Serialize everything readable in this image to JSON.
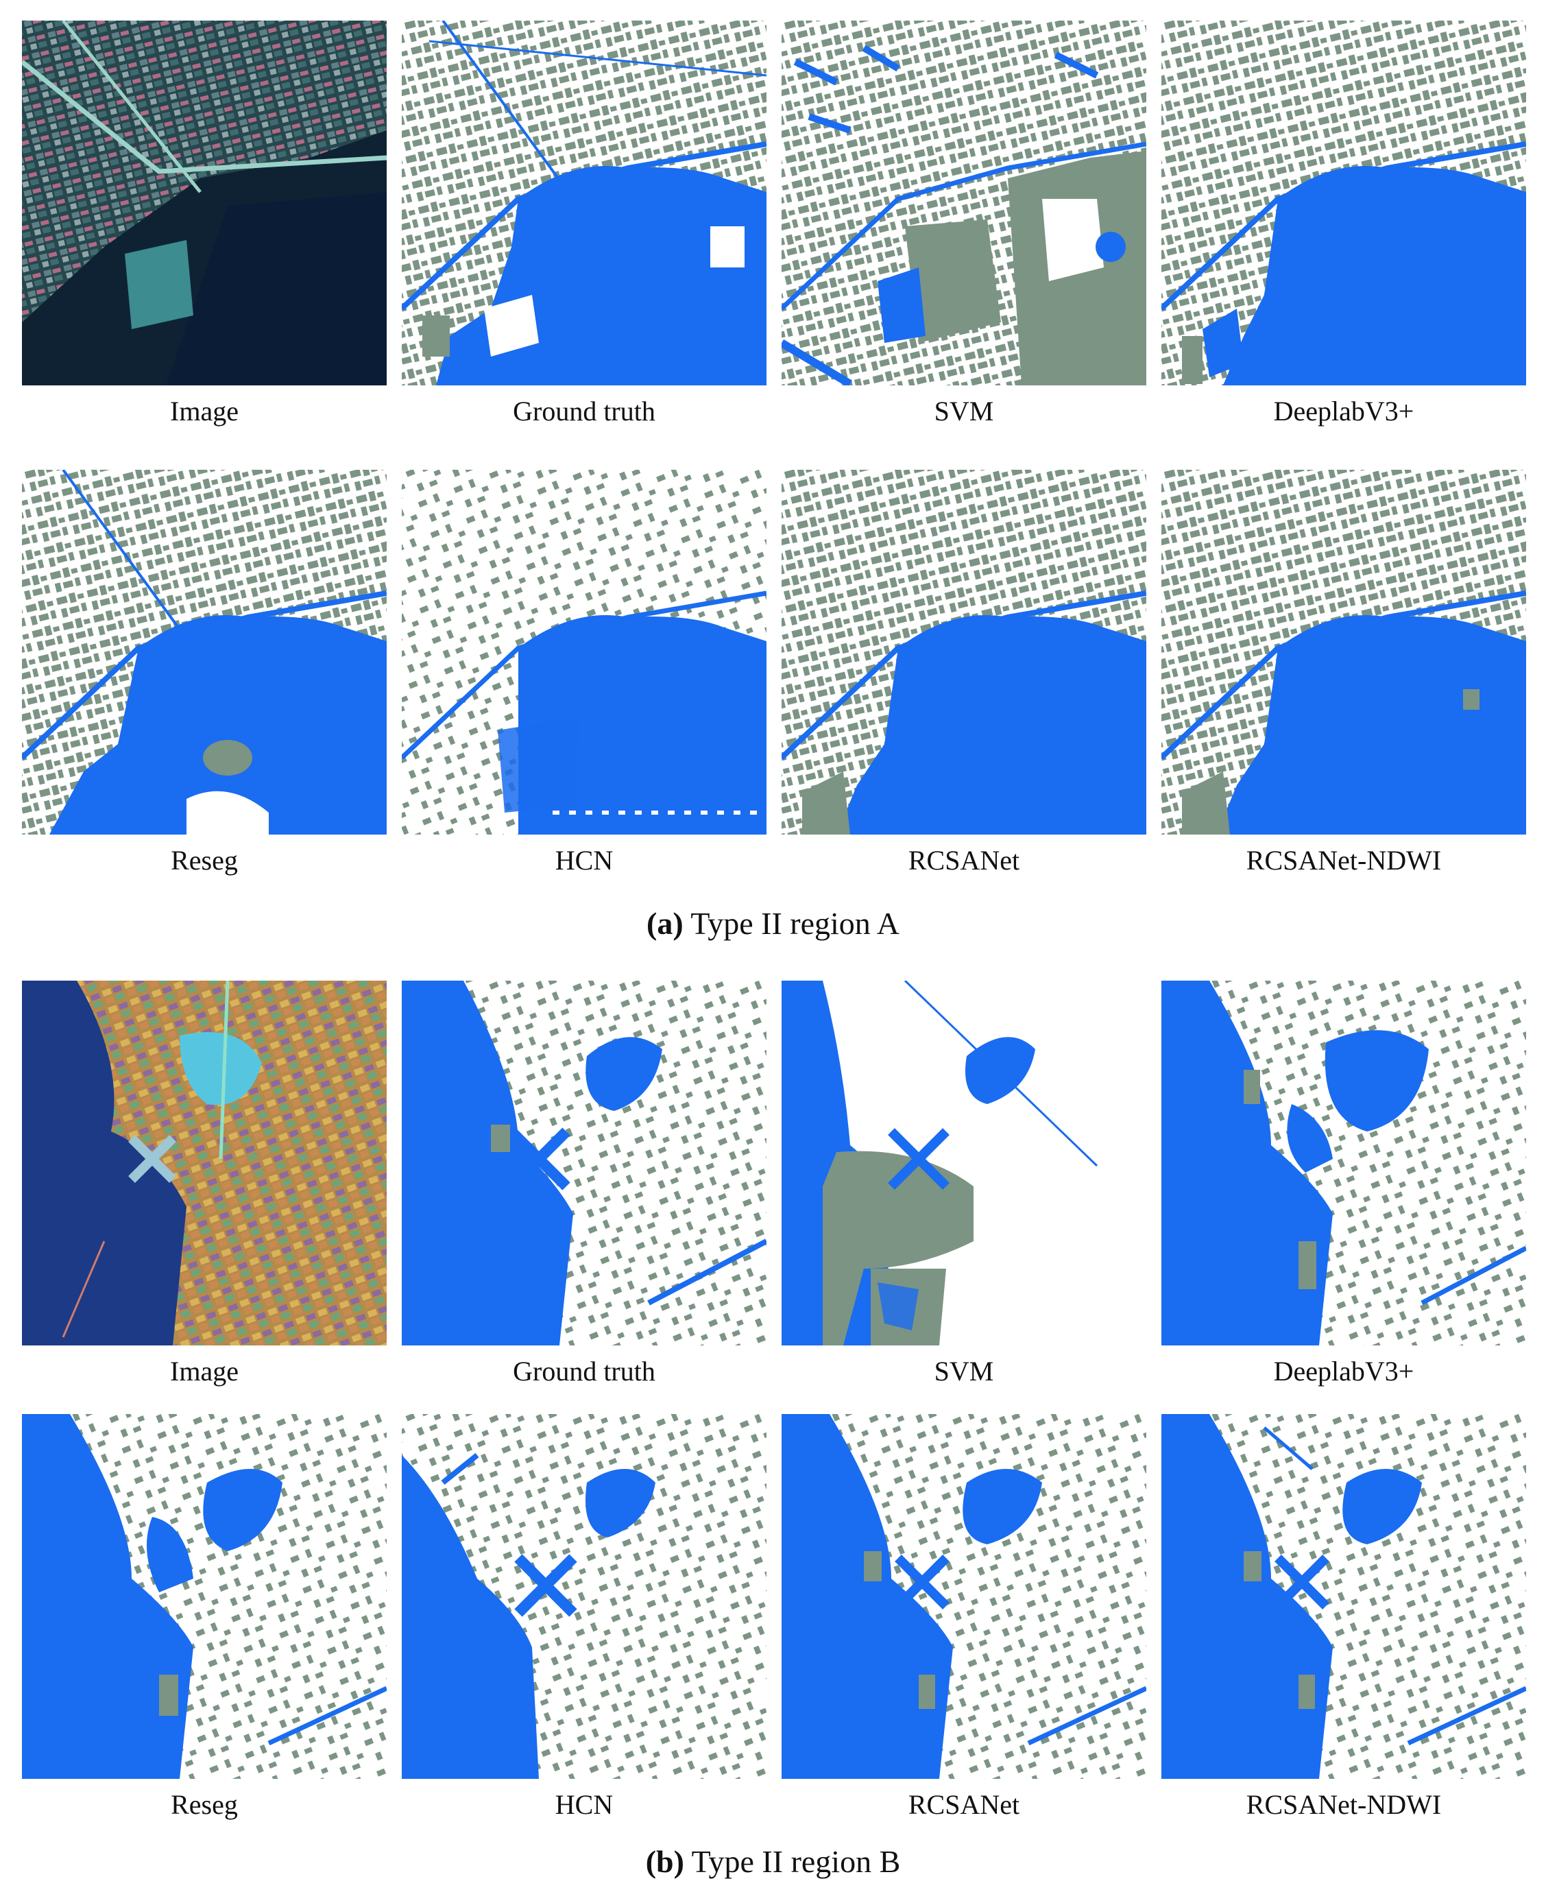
{
  "colors": {
    "water": "#1a6cf0",
    "land_cover": "#7c9484",
    "background": "#ffffff",
    "satellite_a_base": "#1d3a3f",
    "satellite_b_base": "#1c3a86"
  },
  "sections": [
    {
      "id": "a",
      "caption_prefix": "(a)",
      "caption_text": "Type II region A",
      "rows": [
        {
          "labels": [
            "Image",
            "Ground truth",
            "SVM",
            "DeeplabV3+"
          ]
        },
        {
          "labels": [
            "Reseg",
            "HCN",
            "RCSANet",
            "RCSANet-NDWI"
          ]
        }
      ]
    },
    {
      "id": "b",
      "caption_prefix": "(b)",
      "caption_text": "Type II region B",
      "rows": [
        {
          "labels": [
            "Image",
            "Ground truth",
            "SVM",
            "DeeplabV3+"
          ]
        },
        {
          "labels": [
            "Reseg",
            "HCN",
            "RCSANet",
            "RCSANet-NDWI"
          ]
        }
      ]
    }
  ]
}
